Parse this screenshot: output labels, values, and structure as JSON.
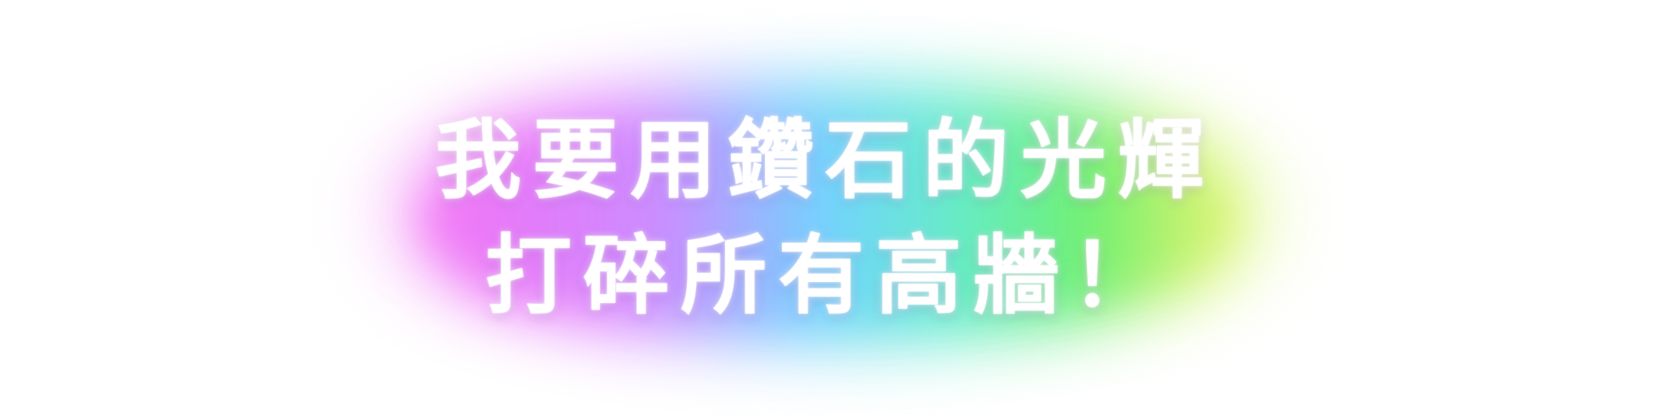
{
  "headline": {
    "line1": "我要用鑽石的光輝",
    "line2": "打碎所有高牆！"
  },
  "colors": {
    "text": "#ffffff",
    "glow_pink": "#f07cf6",
    "glow_violet": "#e08cff",
    "glow_blue": "#86d6ff",
    "glow_cyan": "#78eed8",
    "glow_green": "#7bf08a",
    "glow_yellow": "#d8f57a",
    "background": "#ffffff"
  }
}
